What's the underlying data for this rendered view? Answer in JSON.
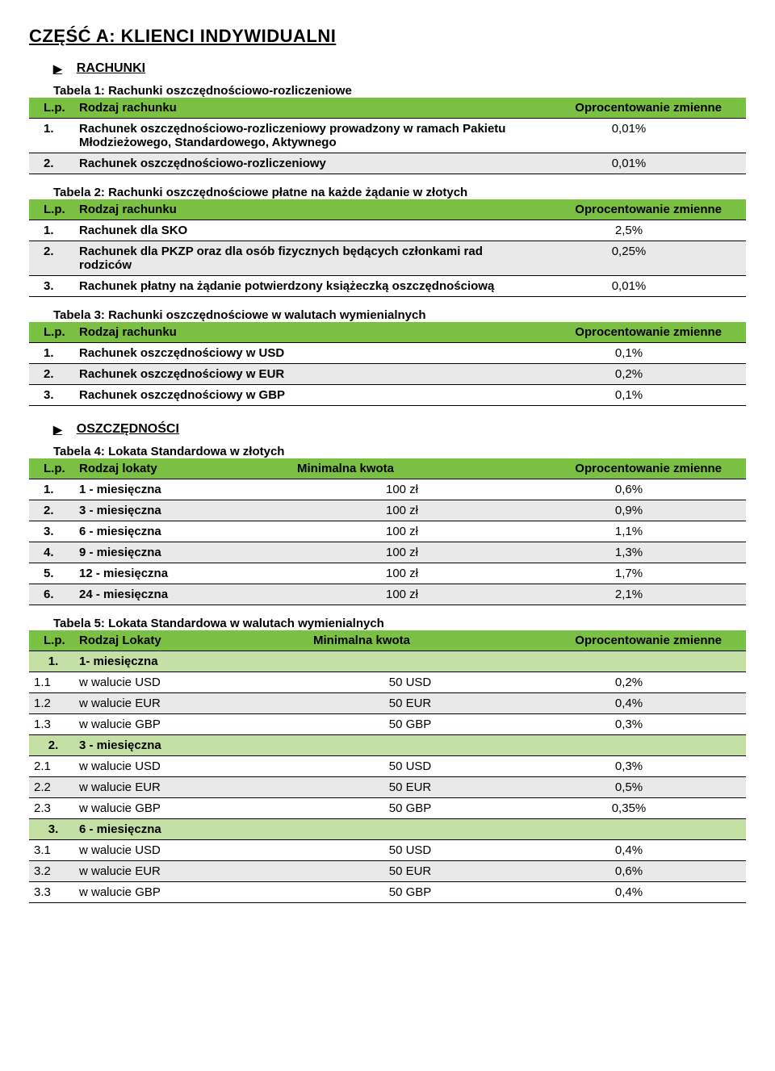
{
  "colors": {
    "header_green": "#7ac143",
    "subheader_green": "#c5e0a5",
    "row_grey": "#e9e9e9",
    "border": "#000000",
    "text": "#000000",
    "background": "#ffffff"
  },
  "title": "CZĘŚĆ A: KLIENCI INDYWIDUALNI",
  "section1": {
    "label": "RACHUNKI"
  },
  "t1": {
    "caption": "Tabela 1:  Rachunki oszczędnościowo-rozliczeniowe",
    "h_lp": "L.p.",
    "h_name": "Rodzaj rachunku",
    "h_val": "Oprocentowanie zmienne",
    "rows": [
      {
        "lp": "1.",
        "name": "Rachunek oszczędnościowo-rozliczeniowy prowadzony w ramach Pakietu Młodzieżowego, Standardowego, Aktywnego",
        "val": "0,01%"
      },
      {
        "lp": "2.",
        "name": "Rachunek oszczędnościowo-rozliczeniowy",
        "val": "0,01%"
      }
    ]
  },
  "t2": {
    "caption": "Tabela 2:  Rachunki oszczędnościowe płatne na każde żądanie w złotych",
    "h_lp": "L.p.",
    "h_name": "Rodzaj rachunku",
    "h_val": "Oprocentowanie zmienne",
    "rows": [
      {
        "lp": "1.",
        "name": "Rachunek dla SKO",
        "val": "2,5%"
      },
      {
        "lp": "2.",
        "name": "Rachunek dla PKZP oraz dla osób fizycznych będących członkami rad rodziców",
        "val": "0,25%"
      },
      {
        "lp": "3.",
        "name": "Rachunek płatny na żądanie potwierdzony książeczką oszczędnościową",
        "val": "0,01%"
      }
    ]
  },
  "t3": {
    "caption": "Tabela 3:  Rachunki oszczędnościowe w walutach wymienialnych",
    "h_lp": "L.p.",
    "h_name": "Rodzaj rachunku",
    "h_val": "Oprocentowanie zmienne",
    "rows": [
      {
        "lp": "1.",
        "name": "Rachunek oszczędnościowy w USD",
        "val": "0,1%"
      },
      {
        "lp": "2.",
        "name": "Rachunek oszczędnościowy w EUR",
        "val": "0,2%"
      },
      {
        "lp": "3.",
        "name": "Rachunek oszczędnościowy w GBP",
        "val": "0,1%"
      }
    ]
  },
  "section2": {
    "label": "OSZCZĘDNOŚCI"
  },
  "t4": {
    "caption": "Tabela 4:  Lokata Standardowa w złotych",
    "h_lp": "L.p.",
    "h_name": "Rodzaj lokaty",
    "h_min": "Minimalna kwota",
    "h_val": "Oprocentowanie zmienne",
    "rows": [
      {
        "lp": "1.",
        "name": "1 - miesięczna",
        "min": "100 zł",
        "val": "0,6%"
      },
      {
        "lp": "2.",
        "name": "3 - miesięczna",
        "min": "100 zł",
        "val": "0,9%"
      },
      {
        "lp": "3.",
        "name": "6 - miesięczna",
        "min": "100 zł",
        "val": "1,1%"
      },
      {
        "lp": "4.",
        "name": "9 - miesięczna",
        "min": "100 zł",
        "val": "1,3%"
      },
      {
        "lp": "5.",
        "name": "12 - miesięczna",
        "min": "100 zł",
        "val": "1,7%"
      },
      {
        "lp": "6.",
        "name": "24 - miesięczna",
        "min": "100 zł",
        "val": "2,1%"
      }
    ]
  },
  "t5": {
    "caption": "Tabela 5:  Lokata Standardowa w walutach wymienialnych",
    "h_lp": "L.p.",
    "h_name": "Rodzaj Lokaty",
    "h_min": "Minimalna kwota",
    "h_val": "Oprocentowanie zmienne",
    "groups": [
      {
        "lp": "1.",
        "name": "1- miesięczna",
        "rows": [
          {
            "lp": "1.1",
            "name": "w walucie USD",
            "min": "50 USD",
            "val": "0,2%"
          },
          {
            "lp": "1.2",
            "name": "w walucie EUR",
            "min": "50 EUR",
            "val": "0,4%"
          },
          {
            "lp": "1.3",
            "name": "w walucie GBP",
            "min": "50 GBP",
            "val": "0,3%"
          }
        ]
      },
      {
        "lp": "2.",
        "name": "3 - miesięczna",
        "rows": [
          {
            "lp": "2.1",
            "name": "w walucie USD",
            "min": "50 USD",
            "val": "0,3%"
          },
          {
            "lp": "2.2",
            "name": "w walucie EUR",
            "min": "50 EUR",
            "val": "0,5%"
          },
          {
            "lp": "2.3",
            "name": "w walucie GBP",
            "min": "50 GBP",
            "val": "0,35%"
          }
        ]
      },
      {
        "lp": "3.",
        "name": "6 - miesięczna",
        "rows": [
          {
            "lp": "3.1",
            "name": "w walucie USD",
            "min": "50 USD",
            "val": "0,4%"
          },
          {
            "lp": "3.2",
            "name": "w walucie EUR",
            "min": "50 EUR",
            "val": "0,6%"
          },
          {
            "lp": "3.3",
            "name": "w walucie GBP",
            "min": "50 GBP",
            "val": "0,4%"
          }
        ]
      }
    ]
  }
}
